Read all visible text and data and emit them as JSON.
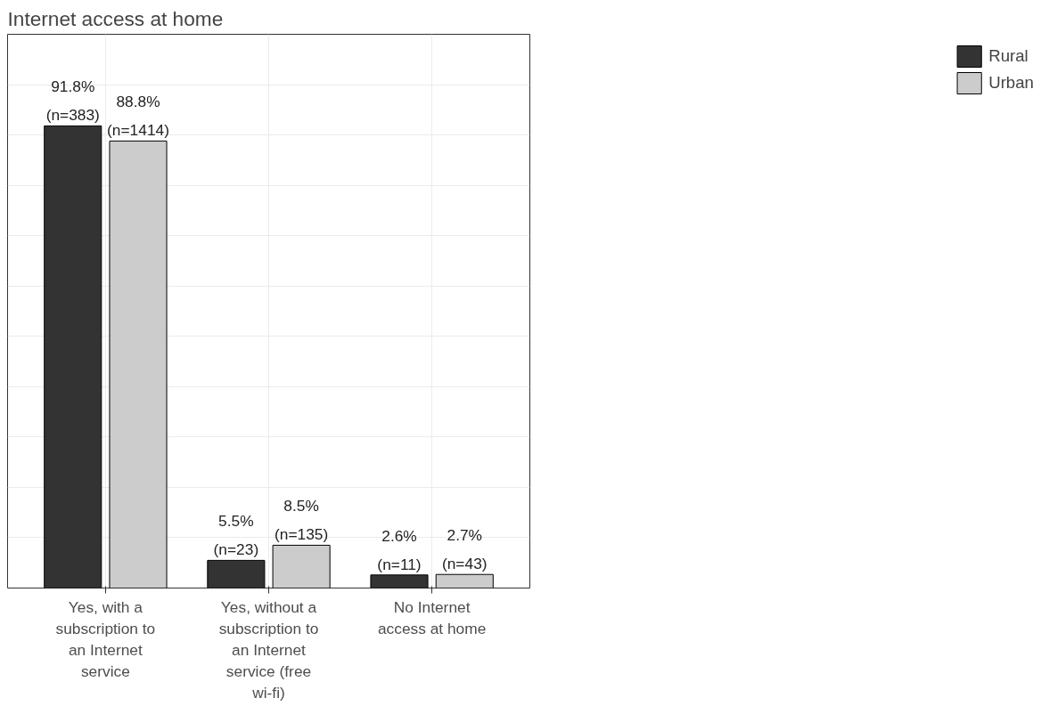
{
  "chart_data": {
    "type": "bar",
    "title": "Internet access at home",
    "categories": [
      "Yes, with a subscription to an Internet service",
      "Yes, without a subscription to an Internet service (free wi-fi)",
      "No Internet access at home"
    ],
    "series": [
      {
        "name": "Rural",
        "color": "#333333",
        "values": [
          91.8,
          5.5,
          2.6
        ],
        "value_labels": [
          "91.8%\n(n=383)",
          "5.5%\n(n=23)",
          "2.6%\n(n=11)"
        ]
      },
      {
        "name": "Urban",
        "color": "#cccccc",
        "values": [
          88.8,
          8.5,
          2.7
        ],
        "value_labels": [
          "88.8%\n(n=1414)",
          "8.5%\n(n=135)",
          "2.7%\n(n=43)"
        ]
      }
    ],
    "ylim": [
      0,
      110
    ],
    "yticks": [
      {
        "value": 10,
        "label": null
      },
      {
        "value": 20,
        "label": null
      },
      {
        "value": 30,
        "label": null
      },
      {
        "value": 40,
        "label": null
      },
      {
        "value": 50,
        "label": null
      },
      {
        "value": 60,
        "label": null
      },
      {
        "value": 70,
        "label": null
      },
      {
        "value": 80,
        "label": null
      },
      {
        "value": 90,
        "label": null
      },
      {
        "value": 100,
        "label": null
      }
    ],
    "tick_labels": "x",
    "grid": true,
    "legend": "right"
  }
}
